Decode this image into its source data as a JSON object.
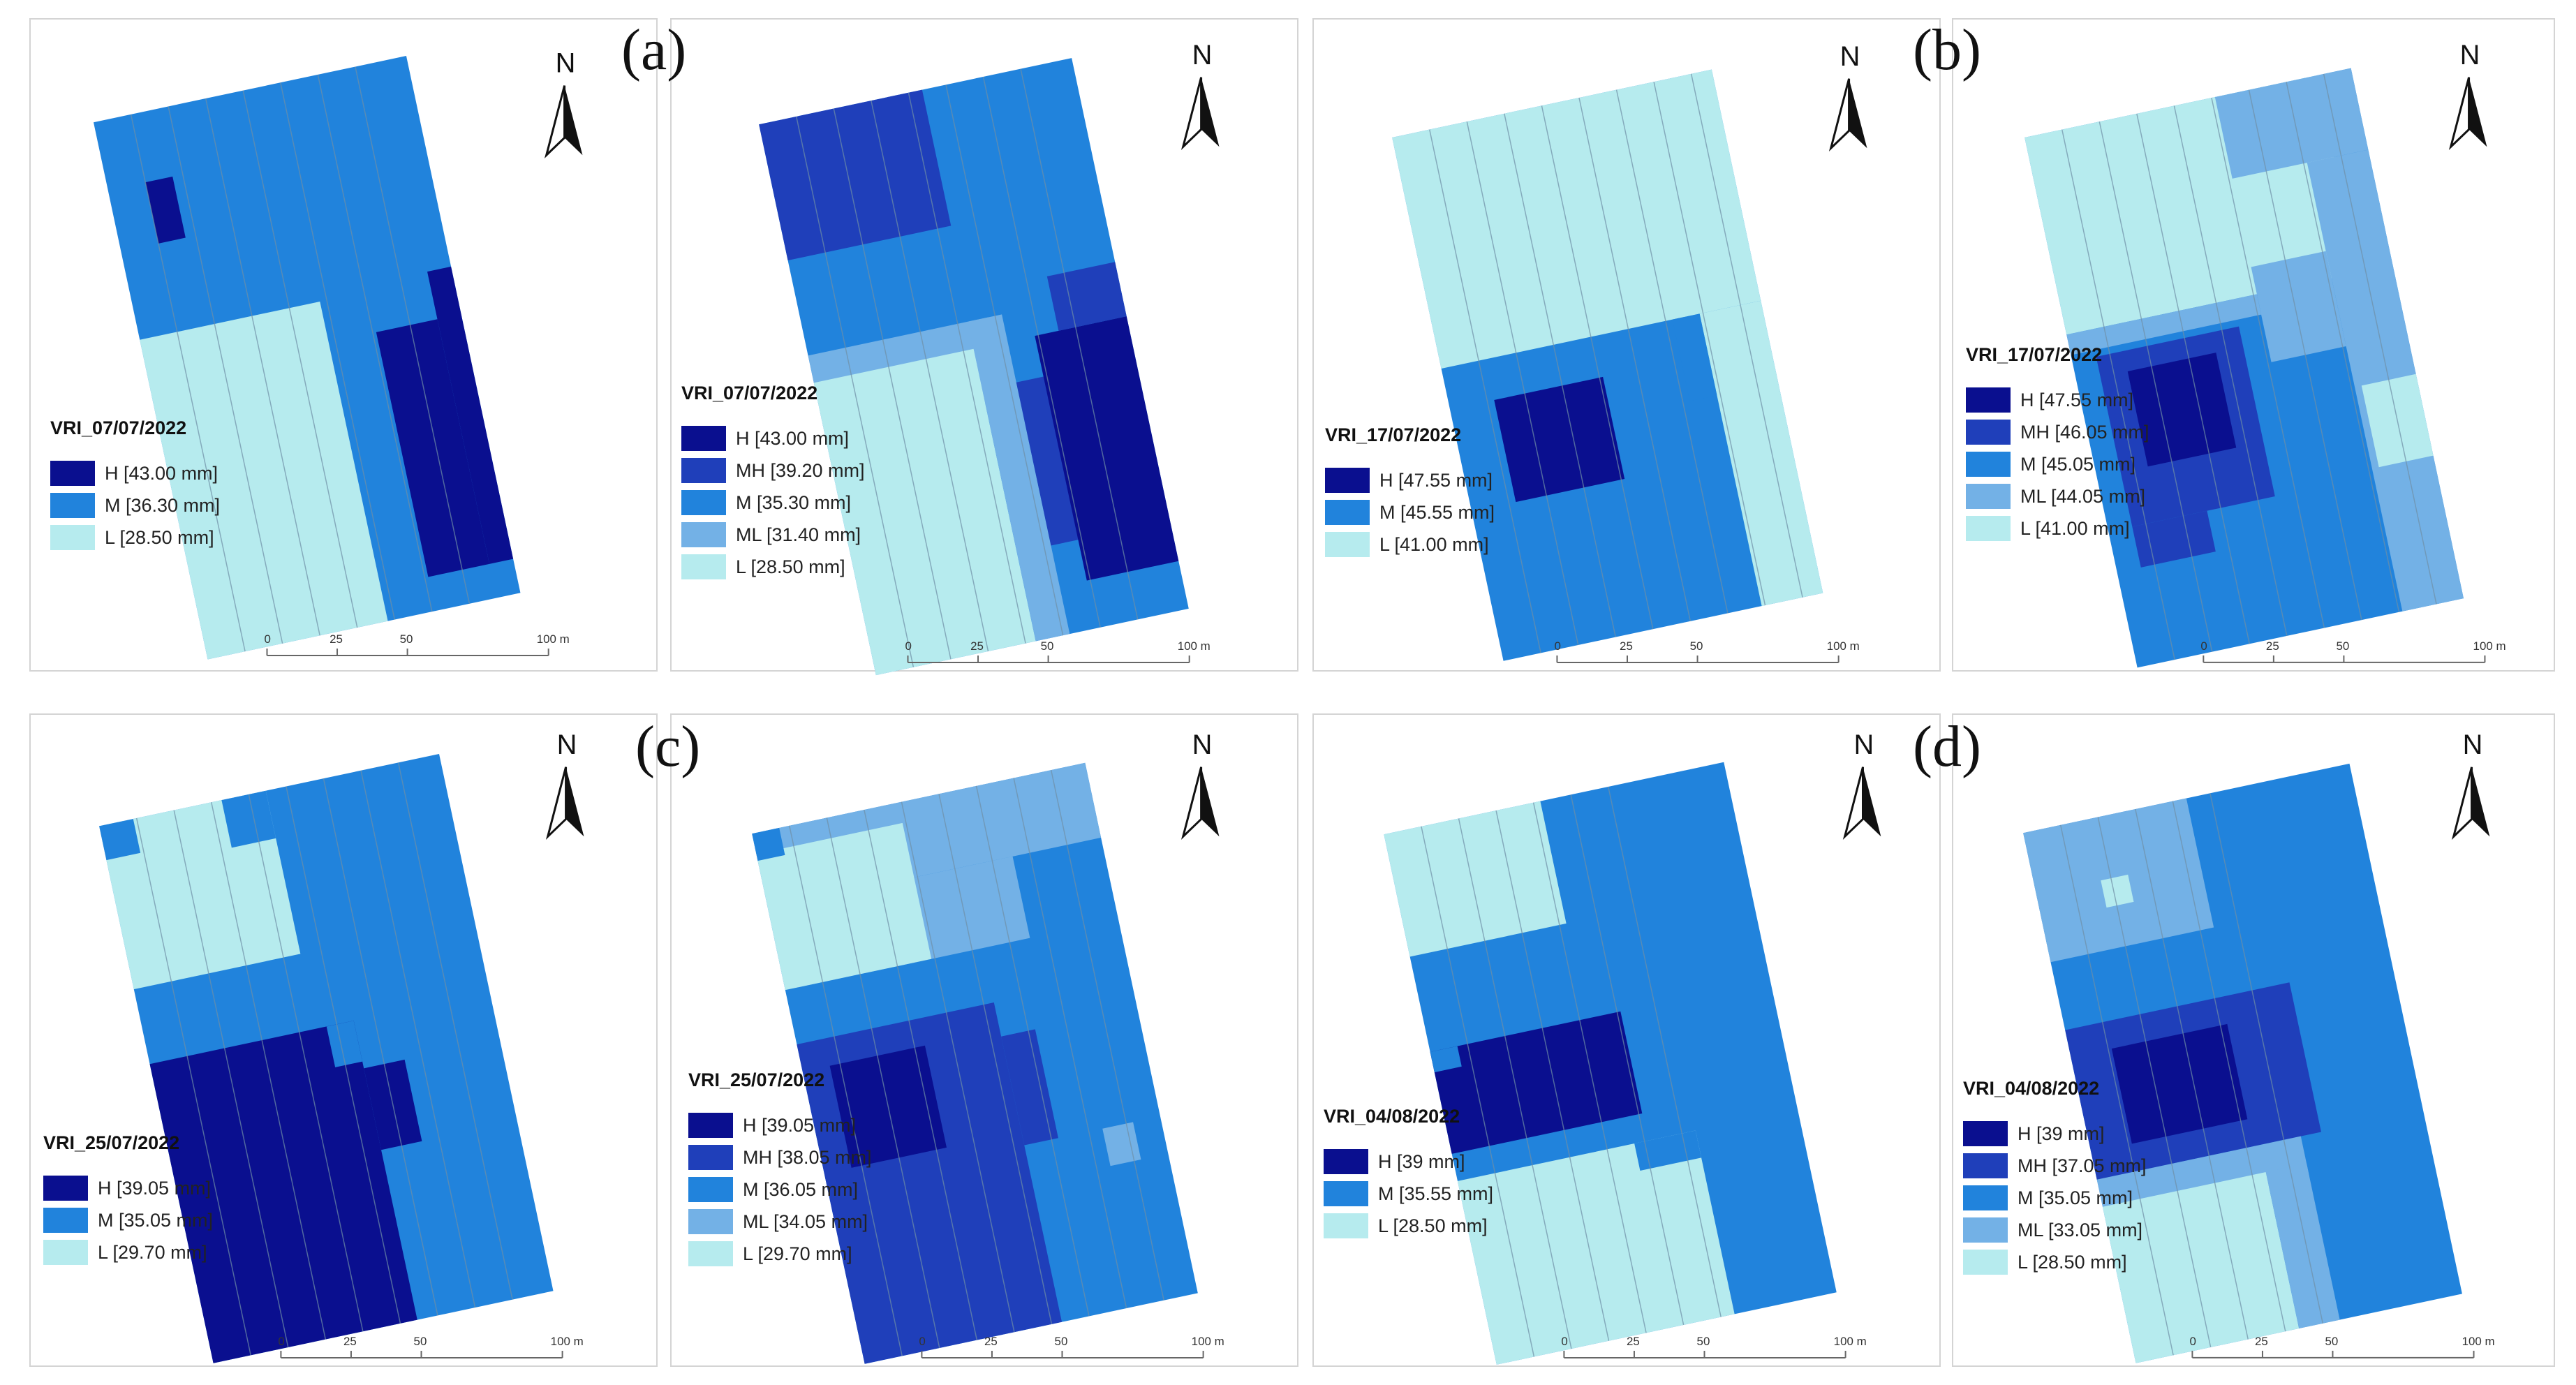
{
  "colors": {
    "H": "#0a0f8f",
    "MH": "#1f3fba",
    "M": "#2183dc",
    "ML": "#73b1e6",
    "L": "#b6ebee",
    "stripe": "#6f8fa6",
    "border": "#d4d4d4"
  },
  "figure": {
    "pair_labels": [
      "(a)",
      "(b)",
      "(c)",
      "(d)"
    ],
    "north_label": "N",
    "scale_labels": [
      "0",
      "25",
      "50",
      "100 m"
    ]
  },
  "maps": [
    {
      "title": "VRI_07/07/2022",
      "legend": [
        {
          "cls": "H",
          "label": "H [43.00 mm]"
        },
        {
          "cls": "M",
          "label": "M [36.30 mm]"
        },
        {
          "cls": "L",
          "label": "L [28.50 mm]"
        }
      ]
    },
    {
      "title": "VRI_07/07/2022",
      "legend": [
        {
          "cls": "H",
          "label": "H [43.00 mm]"
        },
        {
          "cls": "MH",
          "label": "MH [39.20 mm]"
        },
        {
          "cls": "M",
          "label": "M [35.30 mm]"
        },
        {
          "cls": "ML",
          "label": "ML [31.40 mm]"
        },
        {
          "cls": "L",
          "label": "L [28.50 mm]"
        }
      ]
    },
    {
      "title": "VRI_17/07/2022",
      "legend": [
        {
          "cls": "H",
          "label": "H [47.55 mm]"
        },
        {
          "cls": "M",
          "label": "M [45.55 mm]"
        },
        {
          "cls": "L",
          "label": "L [41.00 mm]"
        }
      ]
    },
    {
      "title": "VRI_17/07/2022",
      "legend": [
        {
          "cls": "H",
          "label": "H [47.55 mm]"
        },
        {
          "cls": "MH",
          "label": "MH [46.05 mm]"
        },
        {
          "cls": "M",
          "label": "M [45.05 mm]"
        },
        {
          "cls": "ML",
          "label": "ML [44.05 mm]"
        },
        {
          "cls": "L",
          "label": "L [41.00 mm]"
        }
      ]
    },
    {
      "title": "VRI_25/07/2022",
      "legend": [
        {
          "cls": "H",
          "label": "H [39.05 mm]"
        },
        {
          "cls": "M",
          "label": "M [35.05 mm]"
        },
        {
          "cls": "L",
          "label": "L [29.70 mm]"
        }
      ]
    },
    {
      "title": "VRI_25/07/2022",
      "legend": [
        {
          "cls": "H",
          "label": "H [39.05 mm]"
        },
        {
          "cls": "MH",
          "label": "MH [38.05 mm]"
        },
        {
          "cls": "M",
          "label": "M [36.05 mm]"
        },
        {
          "cls": "ML",
          "label": "ML [34.05 mm]"
        },
        {
          "cls": "L",
          "label": "L [29.70 mm]"
        }
      ]
    },
    {
      "title": "VRI_04/08/2022",
      "legend": [
        {
          "cls": "H",
          "label": "H [39 mm]"
        },
        {
          "cls": "M",
          "label": "M [35.55 mm]"
        },
        {
          "cls": "L",
          "label": "L [28.50 mm]"
        }
      ]
    },
    {
      "title": "VRI_04/08/2022",
      "legend": [
        {
          "cls": "H",
          "label": "H [39 mm]"
        },
        {
          "cls": "MH",
          "label": "MH [37.05 mm]"
        },
        {
          "cls": "M",
          "label": "M [35.05 mm]"
        },
        {
          "cls": "ML",
          "label": "ML [33.05 mm]"
        },
        {
          "cls": "L",
          "label": "L [28.50 mm]"
        }
      ]
    }
  ]
}
